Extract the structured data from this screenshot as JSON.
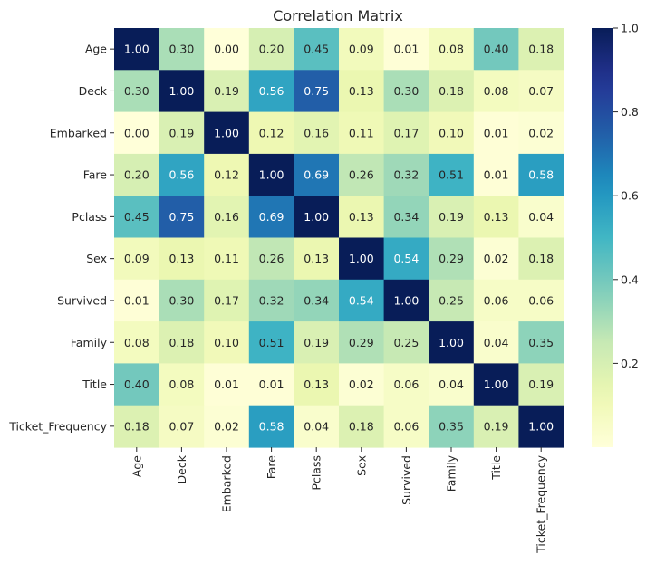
{
  "chart_data": {
    "type": "heatmap",
    "title": "Correlation Matrix",
    "xlabel": "",
    "ylabel": "",
    "rows": [
      "Age",
      "Deck",
      "Embarked",
      "Fare",
      "Pclass",
      "Sex",
      "Survived",
      "Family",
      "Title",
      "Ticket_Frequency"
    ],
    "columns": [
      "Age",
      "Deck",
      "Embarked",
      "Fare",
      "Pclass",
      "Sex",
      "Survived",
      "Family",
      "Title",
      "Ticket_Frequency"
    ],
    "values": [
      [
        1.0,
        0.3,
        0.0,
        0.2,
        0.45,
        0.09,
        0.01,
        0.08,
        0.4,
        0.18
      ],
      [
        0.3,
        1.0,
        0.19,
        0.56,
        0.75,
        0.13,
        0.3,
        0.18,
        0.08,
        0.07
      ],
      [
        0.0,
        0.19,
        1.0,
        0.12,
        0.16,
        0.11,
        0.17,
        0.1,
        0.01,
        0.02
      ],
      [
        0.2,
        0.56,
        0.12,
        1.0,
        0.69,
        0.26,
        0.32,
        0.51,
        0.01,
        0.58
      ],
      [
        0.45,
        0.75,
        0.16,
        0.69,
        1.0,
        0.13,
        0.34,
        0.19,
        0.13,
        0.04
      ],
      [
        0.09,
        0.13,
        0.11,
        0.26,
        0.13,
        1.0,
        0.54,
        0.29,
        0.02,
        0.18
      ],
      [
        0.01,
        0.3,
        0.17,
        0.32,
        0.34,
        0.54,
        1.0,
        0.25,
        0.06,
        0.06
      ],
      [
        0.08,
        0.18,
        0.1,
        0.51,
        0.19,
        0.29,
        0.25,
        1.0,
        0.04,
        0.35
      ],
      [
        0.4,
        0.08,
        0.01,
        0.01,
        0.13,
        0.02,
        0.06,
        0.04,
        1.0,
        0.19
      ],
      [
        0.18,
        0.07,
        0.02,
        0.58,
        0.04,
        0.18,
        0.06,
        0.35,
        0.19,
        1.0
      ]
    ],
    "colormap": "YlGnBu",
    "colorbar": {
      "range": [
        0.0,
        1.0
      ],
      "ticks": [
        0.2,
        0.4,
        0.6,
        0.8,
        1.0
      ],
      "tick_labels": [
        "0.2",
        "0.4",
        "0.6",
        "0.8",
        "1.0"
      ]
    },
    "annotation_format": "2 decimals",
    "grid": false,
    "legend": "colorbar right"
  }
}
